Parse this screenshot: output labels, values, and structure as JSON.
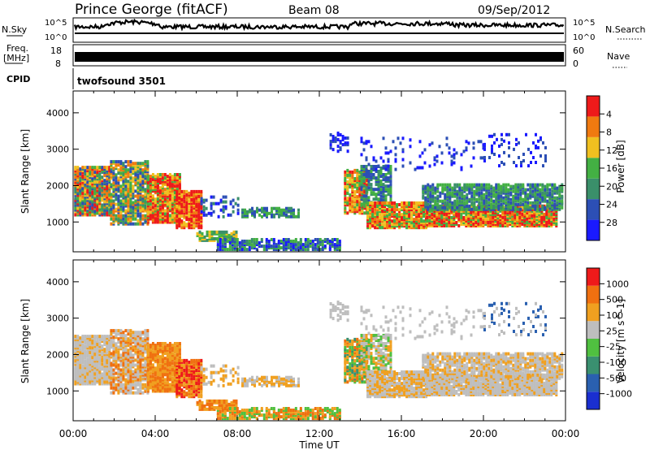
{
  "header": {
    "title": "Prince George (fitACF)",
    "beam": "Beam 08",
    "date": "09/Sep/2012"
  },
  "status_panels": {
    "nsky": {
      "label": "N.Sky",
      "ticks": [
        "10^5",
        "10^0"
      ]
    },
    "nsearch": {
      "label": "N.Search",
      "ticks": [
        "10^5",
        "10^0"
      ],
      "legend_line": "dotted"
    },
    "freq": {
      "label_line1": "Freq.",
      "label_line2": "[MHz]",
      "ticks": [
        "18",
        "8"
      ]
    },
    "nave": {
      "label": "Nave",
      "ticks": [
        "60",
        "0"
      ],
      "legend_line": "dotted"
    },
    "cpid": {
      "label": "CPID",
      "value": "twofsound 3501"
    }
  },
  "chart_data": [
    {
      "type": "heatmap",
      "name": "power-panel",
      "ylabel": "Slant Range [km]",
      "yticks": [
        "1000",
        "2000",
        "3000",
        "4000"
      ],
      "ylim": [
        180,
        4600
      ],
      "xlim": [
        0,
        24
      ],
      "colorbar": {
        "label": "Power [dB]",
        "ticks": [
          "4",
          "8",
          "12",
          "16",
          "20",
          "24",
          "28"
        ],
        "colors": [
          "#1a1aff",
          "#2c4fb5",
          "#3a8f6a",
          "#43b043",
          "#f0c020",
          "#f07a10",
          "#ee1a1a"
        ]
      }
    },
    {
      "type": "heatmap",
      "name": "velocity-panel",
      "ylabel": "Slant Range [km]",
      "yticks": [
        "1000",
        "2000",
        "3000",
        "4000"
      ],
      "ylim": [
        180,
        4600
      ],
      "xlim": [
        0,
        24
      ],
      "colorbar": {
        "label": "Velocity [m s^-1]",
        "ticks": [
          "1000",
          "500",
          "100",
          "25",
          "-25",
          "-100",
          "-500",
          "-1000"
        ],
        "colors": [
          "#1a2fd0",
          "#2a60b0",
          "#3a9070",
          "#50c040",
          "#bebebe",
          "#f0a020",
          "#f07010",
          "#ee1a1a"
        ]
      }
    }
  ],
  "xaxis": {
    "label": "Time UT",
    "ticks": [
      "00:00",
      "04:00",
      "08:00",
      "12:00",
      "16:00",
      "20:00",
      "00:00"
    ]
  }
}
